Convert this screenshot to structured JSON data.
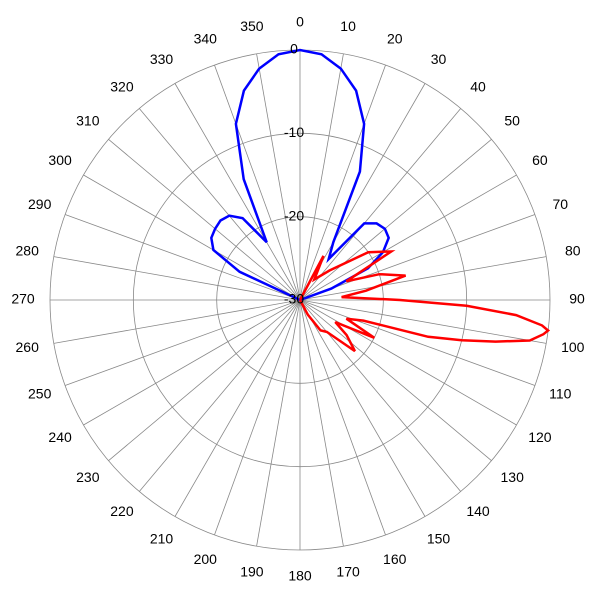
{
  "chart_data": {
    "type": "polar",
    "thetaticks": [
      0,
      10,
      20,
      30,
      40,
      50,
      60,
      70,
      80,
      90,
      100,
      110,
      120,
      130,
      140,
      150,
      160,
      170,
      180,
      190,
      200,
      210,
      220,
      230,
      240,
      250,
      260,
      270,
      280,
      290,
      300,
      310,
      320,
      330,
      340,
      350
    ],
    "rlim": [
      -30,
      0
    ],
    "rticks": [
      0,
      -10,
      -20,
      -30
    ],
    "grid": true,
    "series": [
      {
        "color": "#0000ff",
        "theta": [
          285,
          295,
          300,
          305,
          310,
          315,
          320,
          325,
          330,
          335,
          340,
          345,
          350,
          355,
          0,
          5,
          10,
          15,
          20,
          25,
          30,
          35,
          40,
          45,
          50,
          55,
          60,
          65,
          70,
          75
        ],
        "values": [
          -30,
          -22,
          -18,
          -17,
          -16.7,
          -16.5,
          -16.8,
          -18,
          -22,
          -14,
          -7.5,
          -4,
          -1.8,
          -0.4,
          0,
          -0.4,
          -1.8,
          -4,
          -7.5,
          -13,
          -22,
          -24,
          -18,
          -17,
          -16.7,
          -17,
          -18.5,
          -21,
          -26,
          -30
        ]
      },
      {
        "color": "#ff0000",
        "theta": [
          20,
          28,
          35,
          45,
          55,
          62,
          68,
          72,
          77,
          82,
          86,
          90,
          92,
          94,
          96,
          97,
          98,
          100,
          102,
          104,
          106,
          108,
          112,
          117,
          122,
          127,
          133,
          140,
          146,
          152,
          160
        ],
        "values": [
          -30,
          -24,
          -27,
          -25,
          -20,
          -17.6,
          -24,
          -20,
          -17,
          -22,
          -25,
          -18,
          -10,
          -4,
          -0.8,
          0,
          -0.5,
          -2,
          -6,
          -10,
          -14,
          -22,
          -24,
          -20,
          -25,
          -23,
          -21,
          -25,
          -25.6,
          -28,
          -30
        ]
      }
    ]
  }
}
